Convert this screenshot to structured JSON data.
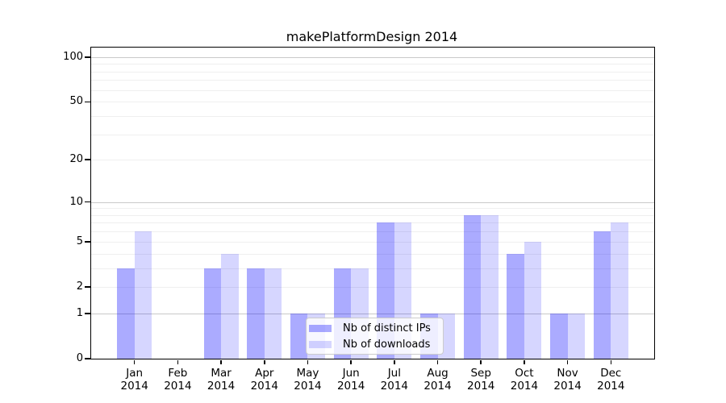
{
  "title": "makePlatformDesign 2014",
  "chart_data": {
    "type": "bar",
    "title": "makePlatformDesign 2014",
    "categories": [
      "Jan 2014",
      "Feb 2014",
      "Mar 2014",
      "Apr 2014",
      "May 2014",
      "Jun 2014",
      "Jul 2014",
      "Aug 2014",
      "Sep 2014",
      "Oct 2014",
      "Nov 2014",
      "Dec 2014"
    ],
    "series": [
      {
        "name": "Nb of distinct IPs",
        "color": "rgba(0,0,255,0.33)",
        "swatch_hex": "#aaaaff",
        "values": [
          3,
          0,
          3,
          3,
          1,
          3,
          7,
          1,
          8,
          4,
          1,
          6
        ]
      },
      {
        "name": "Nb of downloads",
        "color": "rgba(0,0,255,0.16)",
        "swatch_hex": "#d9d9ff",
        "values": [
          6,
          0,
          4,
          3,
          1,
          3,
          7,
          1,
          8,
          5,
          1,
          7
        ]
      }
    ],
    "xlabel": "",
    "ylabel": "",
    "yscale": "log1p",
    "ylim": [
      0,
      116
    ],
    "y_ticks": [
      0,
      1,
      2,
      5,
      10,
      20,
      50,
      100
    ],
    "y_major_gridlines": [
      1,
      10,
      100
    ],
    "y_minor_gridlines": [
      2,
      3,
      4,
      5,
      6,
      7,
      8,
      9,
      20,
      30,
      40,
      50,
      60,
      70,
      80,
      90
    ],
    "grid": {
      "major_color": "#c9c9c9",
      "minor_color": "#efefef",
      "on": true
    },
    "bar_width_fraction": 0.4,
    "axis_color": "#000000",
    "legend": {
      "position": "lower center"
    }
  }
}
